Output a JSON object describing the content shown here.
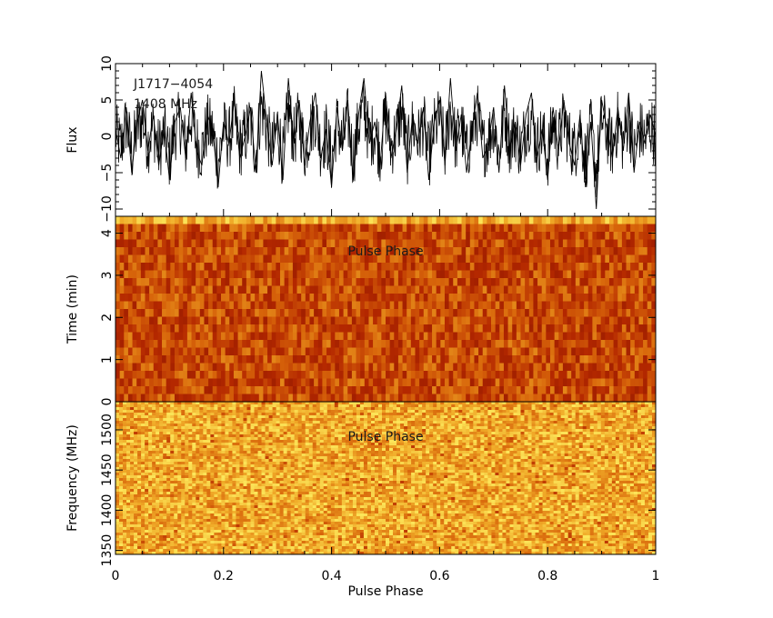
{
  "chart_data": [
    {
      "type": "line",
      "panel": "pulse-profile",
      "annotation": {
        "source": "J1717−4054",
        "frequency": "1408 MHz"
      },
      "ylabel": "Flux",
      "xlabel": "",
      "xlim": [
        0,
        1
      ],
      "ylim": [
        -11,
        10
      ],
      "yticks": [
        10,
        5,
        0,
        -5,
        -10
      ],
      "series": [
        {
          "x": [
            0.0,
            0.01,
            0.02,
            0.03,
            0.04,
            0.05,
            0.06,
            0.07,
            0.08,
            0.09,
            0.1,
            0.11,
            0.12,
            0.13,
            0.14,
            0.15,
            0.16,
            0.17,
            0.18,
            0.19,
            0.2,
            0.21,
            0.22,
            0.23,
            0.24,
            0.25,
            0.26,
            0.27,
            0.28,
            0.29,
            0.3,
            0.31,
            0.32,
            0.33,
            0.34,
            0.35,
            0.36,
            0.37,
            0.38,
            0.39,
            0.4,
            0.41,
            0.42,
            0.43,
            0.44,
            0.45,
            0.46,
            0.47,
            0.48,
            0.49,
            0.5,
            0.51,
            0.52,
            0.53,
            0.54,
            0.55,
            0.56,
            0.57,
            0.58,
            0.59,
            0.6,
            0.61,
            0.62,
            0.63,
            0.64,
            0.65,
            0.66,
            0.67,
            0.68,
            0.69,
            0.7,
            0.71,
            0.72,
            0.73,
            0.74,
            0.75,
            0.76,
            0.77,
            0.78,
            0.79,
            0.8,
            0.81,
            0.82,
            0.83,
            0.84,
            0.85,
            0.86,
            0.87,
            0.88,
            0.89,
            0.9,
            0.91,
            0.92,
            0.93,
            0.94,
            0.95,
            0.96,
            0.97,
            0.98,
            0.99,
            1.0
          ],
          "y": [
            1,
            -3,
            4,
            -5,
            2,
            5,
            -2,
            3,
            -4,
            1,
            -6,
            2,
            4,
            -3,
            6,
            -2,
            -4,
            3,
            1,
            -7,
            2,
            -1,
            5,
            -3,
            0,
            4,
            -5,
            9,
            2,
            -4,
            3,
            -6,
            8,
            -1,
            5,
            -4,
            2,
            6,
            -3,
            1,
            -7,
            4,
            -2,
            5,
            -6,
            3,
            8,
            -1,
            2,
            -4,
            6,
            -3,
            1,
            7,
            -5,
            3,
            -1,
            4,
            -6,
            2,
            5,
            -4,
            8,
            -2,
            3,
            -5,
            1,
            6,
            -3,
            -1,
            4,
            -5,
            7,
            -2,
            2,
            -4,
            3,
            6,
            -3,
            1,
            -6,
            4,
            -2,
            5,
            -1,
            -4,
            3,
            -7,
            2,
            -10,
            5,
            1,
            -3,
            4,
            -2,
            6,
            -5,
            2,
            -1,
            3,
            0
          ]
        }
      ]
    },
    {
      "type": "heatmap",
      "panel": "time-phase",
      "overlay_text": "Pulse Phase",
      "ylabel": "Time (min)",
      "xlabel": "",
      "xlim": [
        0,
        1
      ],
      "ylim": [
        0,
        4.4
      ],
      "yticks": [
        4,
        3,
        2,
        1,
        0
      ],
      "colormap": "heat"
    },
    {
      "type": "heatmap",
      "panel": "frequency-phase",
      "overlay_text": "Pulse Phase",
      "ylabel": "Frequency (MHz)",
      "xlabel": "Pulse Phase",
      "xlim": [
        0,
        1
      ],
      "ylim": [
        1345,
        1535
      ],
      "yticks": [
        1500,
        1450,
        1400,
        1350
      ],
      "xticks": [
        "0",
        "0.2",
        "0.4",
        "0.6",
        "0.8",
        "1"
      ],
      "colormap": "heat"
    }
  ],
  "colors": {
    "axis": "#000000",
    "trace": "#000000",
    "heat_dark": "#8b1a00",
    "heat_mid": "#d2600c",
    "heat_light": "#f5d54a"
  }
}
